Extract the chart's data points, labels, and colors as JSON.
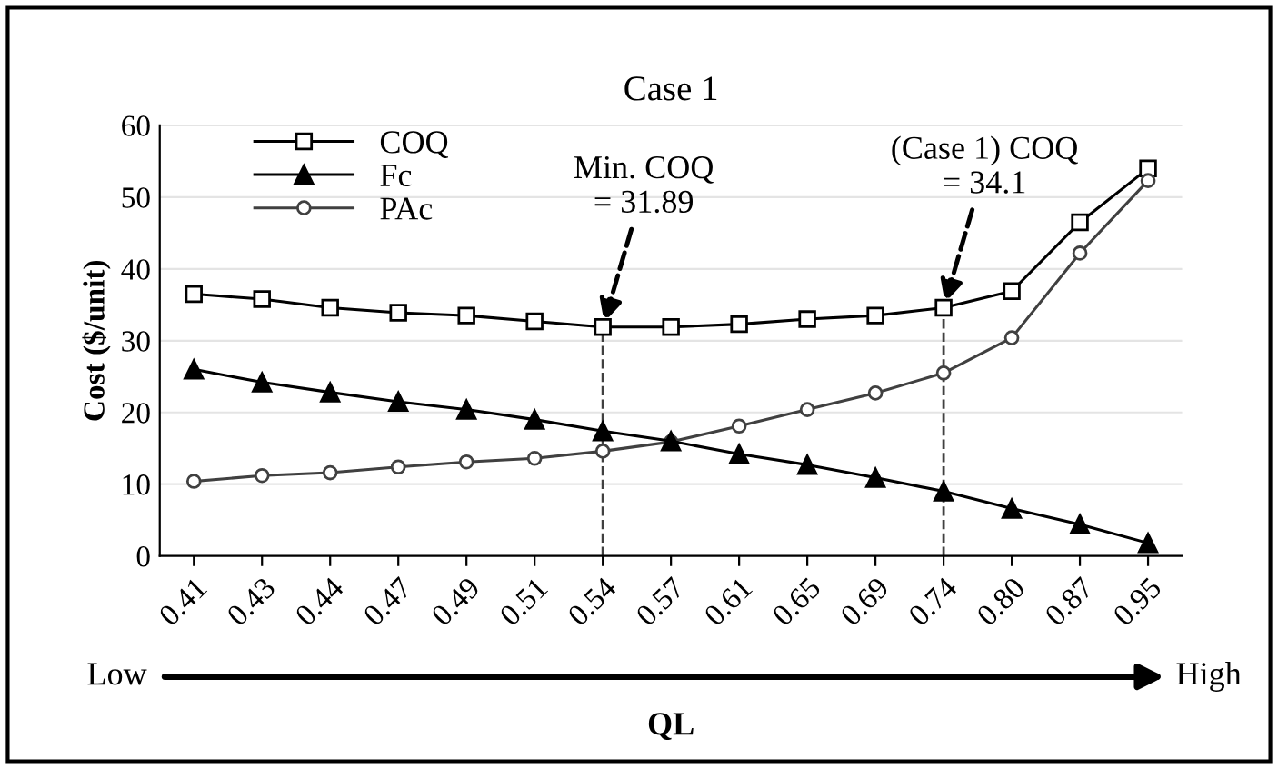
{
  "chart_data": {
    "type": "line",
    "title": "Case 1",
    "xlabel": "QL",
    "ylabel": "Cost ($/unit)",
    "categories": [
      "0.41",
      "0.43",
      "0.44",
      "0.47",
      "0.49",
      "0.51",
      "0.54",
      "0.57",
      "0.61",
      "0.65",
      "0.69",
      "0.74",
      "0.80",
      "0.87",
      "0.95"
    ],
    "series": [
      {
        "name": "COQ",
        "color": "#000000",
        "marker": "square",
        "values": [
          36.5,
          35.8,
          34.6,
          33.9,
          33.5,
          32.7,
          31.9,
          31.9,
          32.3,
          33.0,
          33.5,
          34.6,
          36.9,
          46.5,
          54.0
        ]
      },
      {
        "name": "Fc",
        "color": "#000000",
        "marker": "triangle",
        "values": [
          26.0,
          24.2,
          22.8,
          21.5,
          20.4,
          19.0,
          17.4,
          16.0,
          14.2,
          12.7,
          10.9,
          9.0,
          6.6,
          4.4,
          1.8
        ]
      },
      {
        "name": "PAc",
        "color": "#404040",
        "marker": "circle",
        "values": [
          10.4,
          11.2,
          11.6,
          12.4,
          13.1,
          13.6,
          14.6,
          15.9,
          18.1,
          20.4,
          22.7,
          25.5,
          30.4,
          42.2,
          52.3
        ]
      }
    ],
    "ylim": [
      0,
      60
    ],
    "yticks": [
      0,
      10,
      20,
      30,
      40,
      50,
      60
    ],
    "grid": "y",
    "legend": "top left",
    "ref_lines": [
      {
        "axis": "x",
        "value": "0.54",
        "label": "Min. COQ\n= 31.89",
        "line_style": "dashed",
        "color": "#404040"
      },
      {
        "axis": "x",
        "value": "0.74",
        "label": "(Case 1) COQ\n= 34.1",
        "line_style": "dashed",
        "color": "#404040"
      }
    ],
    "annotations": [
      "Low",
      "High"
    ]
  }
}
